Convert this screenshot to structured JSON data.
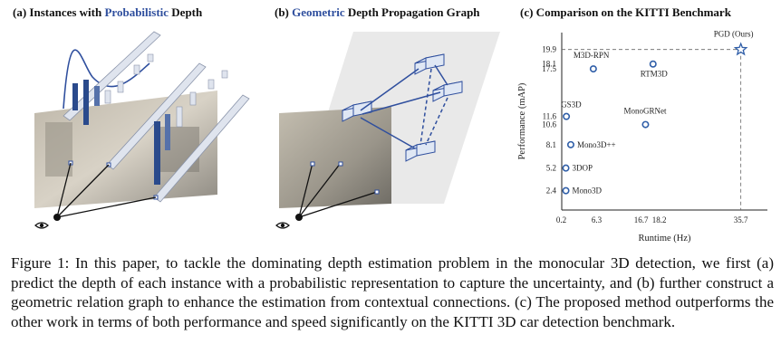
{
  "panel_a": {
    "prefix": "(a) Instances with ",
    "highlight": "Probabilistic",
    "suffix": " Depth"
  },
  "panel_b": {
    "prefix": "(b) ",
    "highlight": "Geometric",
    "suffix": " Depth Propagation Graph"
  },
  "panel_c": {
    "title": "(c) Comparison on the KITTI Benchmark"
  },
  "colors": {
    "accent": "#2f4f9e",
    "marker": "#2f5ea8",
    "bar_dark": "#2a4a8c"
  },
  "chart_data": {
    "type": "scatter",
    "title": "(c) Comparison on the KITTI Benchmark",
    "xlabel": "Runtime (Hz)",
    "ylabel": "Performance (mAP)",
    "xticks": [
      0.2,
      6.3,
      16.7,
      18.2,
      35.7
    ],
    "yticks": [
      2.4,
      5.2,
      8.1,
      10.6,
      11.6,
      17.5,
      18.1,
      19.9
    ],
    "xlim": [
      0,
      41
    ],
    "ylim": [
      0,
      22
    ],
    "grid": false,
    "points": [
      {
        "label": "PGD (Ours)",
        "x": 35.7,
        "y": 19.9,
        "marker": "star"
      },
      {
        "label": "M3D-RPN",
        "x": 6.3,
        "y": 17.5,
        "marker": "circle"
      },
      {
        "label": "RTM3D",
        "x": 18.2,
        "y": 18.1,
        "marker": "circle"
      },
      {
        "label": "GS3D",
        "x": 0.2,
        "y": 11.6,
        "marker": "circle"
      },
      {
        "label": "MonoGRNet",
        "x": 16.7,
        "y": 10.6,
        "marker": "circle"
      },
      {
        "label": "Mono3D++",
        "x": 1.8,
        "y": 8.1,
        "marker": "circle"
      },
      {
        "label": "3DOP",
        "x": 0.1,
        "y": 5.2,
        "marker": "circle"
      },
      {
        "label": "Mono3D",
        "x": 0.1,
        "y": 2.4,
        "marker": "circle"
      }
    ]
  },
  "caption": {
    "text": "Figure 1: In this paper, to tackle the dominating depth estimation problem in the monocular 3D detection, we first (a) predict the depth of each instance with a probabilistic representation to capture the uncertainty, and (b) further construct a geometric relation graph to enhance the estimation from contextual connections. (c) The proposed method outperforms the other work in terms of both performance and speed significantly on the KITTI 3D car detection benchmark."
  }
}
